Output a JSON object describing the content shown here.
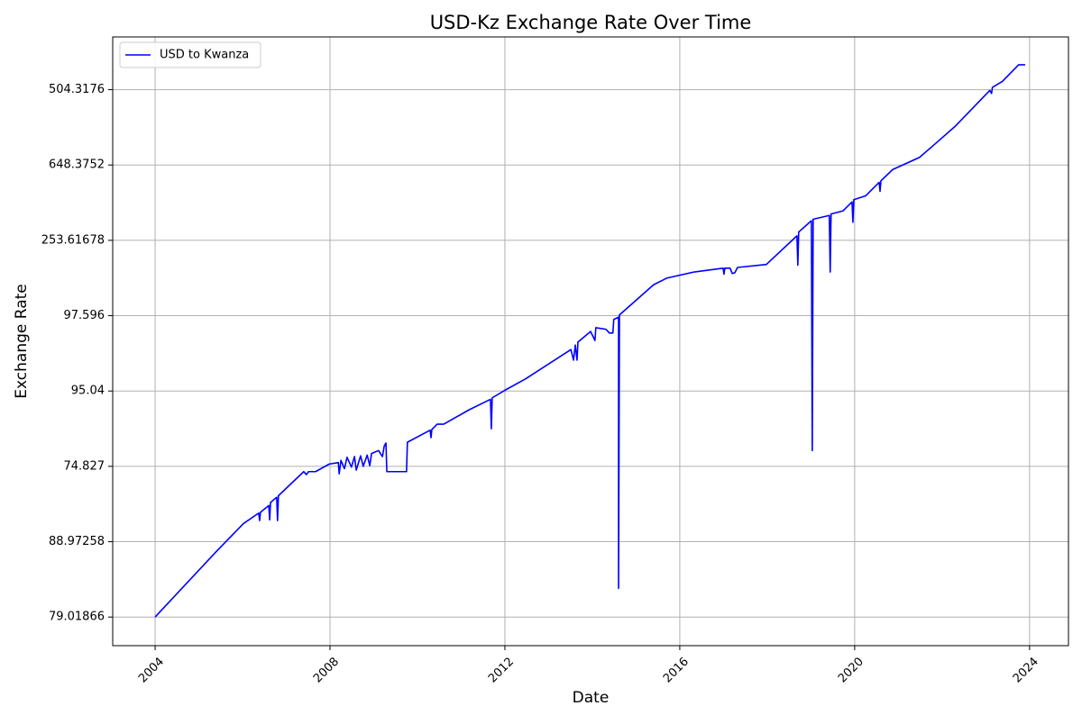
{
  "chart_data": {
    "type": "line",
    "title": "USD-Kz Exchange Rate Over Time",
    "x_label": "Date",
    "y_label": "Exchange Rate",
    "x": [
      2004.0,
      2005.4,
      2006.02,
      2006.37,
      2006.39,
      2006.41,
      2006.6,
      2006.62,
      2006.64,
      2006.78,
      2006.8,
      2006.82,
      2007.4,
      2007.46,
      2007.51,
      2007.67,
      2007.98,
      2008.19,
      2008.21,
      2008.25,
      2008.33,
      2008.39,
      2008.49,
      2008.56,
      2008.6,
      2008.7,
      2008.76,
      2008.85,
      2008.91,
      2008.95,
      2009.11,
      2009.2,
      2009.24,
      2009.28,
      2009.3,
      2009.75,
      2009.77,
      2010.29,
      2010.31,
      2010.33,
      2010.45,
      2010.6,
      2011.18,
      2011.67,
      2011.69,
      2011.71,
      2012.0,
      2012.47,
      2013.51,
      2013.57,
      2013.61,
      2013.65,
      2013.67,
      2013.96,
      2014.06,
      2014.08,
      2014.31,
      2014.39,
      2014.47,
      2014.49,
      2014.6,
      2014.6,
      2014.62,
      2015.4,
      2015.71,
      2016.33,
      2016.99,
      2017.01,
      2017.03,
      2017.15,
      2017.2,
      2017.26,
      2017.32,
      2017.98,
      2018.68,
      2018.7,
      2018.72,
      2019.01,
      2019.03,
      2019.05,
      2019.42,
      2019.44,
      2019.46,
      2019.73,
      2019.94,
      2019.96,
      2019.98,
      2020.25,
      2020.56,
      2020.58,
      2020.6,
      2020.87,
      2021.48,
      2021.84,
      2022.31,
      2023.09,
      2023.13,
      2023.15,
      2023.38,
      2023.75,
      2023.9
    ],
    "series": [
      {
        "name": "USD to Kwanza",
        "color": "#0000ff",
        "values": [
          0.0,
          0.87,
          1.24,
          1.38,
          1.28,
          1.39,
          1.48,
          1.29,
          1.52,
          1.59,
          1.28,
          1.61,
          1.93,
          1.89,
          1.93,
          1.93,
          2.03,
          2.05,
          1.9,
          2.08,
          1.97,
          2.12,
          1.99,
          2.13,
          1.95,
          2.14,
          2.0,
          2.15,
          2.01,
          2.17,
          2.21,
          2.13,
          2.27,
          2.31,
          1.93,
          1.93,
          2.32,
          2.48,
          2.38,
          2.49,
          2.56,
          2.56,
          2.75,
          2.89,
          2.5,
          2.91,
          3.01,
          3.16,
          3.55,
          3.41,
          3.61,
          3.41,
          3.65,
          3.79,
          3.67,
          3.84,
          3.82,
          3.77,
          3.77,
          3.95,
          3.98,
          0.38,
          4.01,
          4.41,
          4.5,
          4.58,
          4.63,
          4.55,
          4.63,
          4.63,
          4.56,
          4.57,
          4.64,
          4.68,
          5.06,
          4.67,
          5.11,
          5.26,
          2.21,
          5.28,
          5.33,
          4.58,
          5.35,
          5.39,
          5.51,
          5.24,
          5.54,
          5.59,
          5.77,
          5.65,
          5.79,
          5.94,
          6.1,
          6.28,
          6.52,
          6.99,
          6.95,
          7.03,
          7.11,
          7.33,
          7.33
        ]
      }
    ],
    "xlim": [
      2003.03,
      2024.89
    ],
    "xticks": [
      2004,
      2008,
      2012,
      2016,
      2020,
      2024
    ],
    "ylim": [
      -0.38,
      7.7
    ],
    "yticks": [
      {
        "value": 0,
        "label": "79.01866"
      },
      {
        "value": 1,
        "label": "88.97258"
      },
      {
        "value": 2,
        "label": "74.827"
      },
      {
        "value": 3,
        "label": "95.04"
      },
      {
        "value": 4,
        "label": "97.596"
      },
      {
        "value": 5,
        "label": "253.61678"
      },
      {
        "value": 6,
        "label": "648.3752"
      },
      {
        "value": 7,
        "label": "504.3176"
      }
    ],
    "grid": true,
    "legend": "upper left"
  }
}
